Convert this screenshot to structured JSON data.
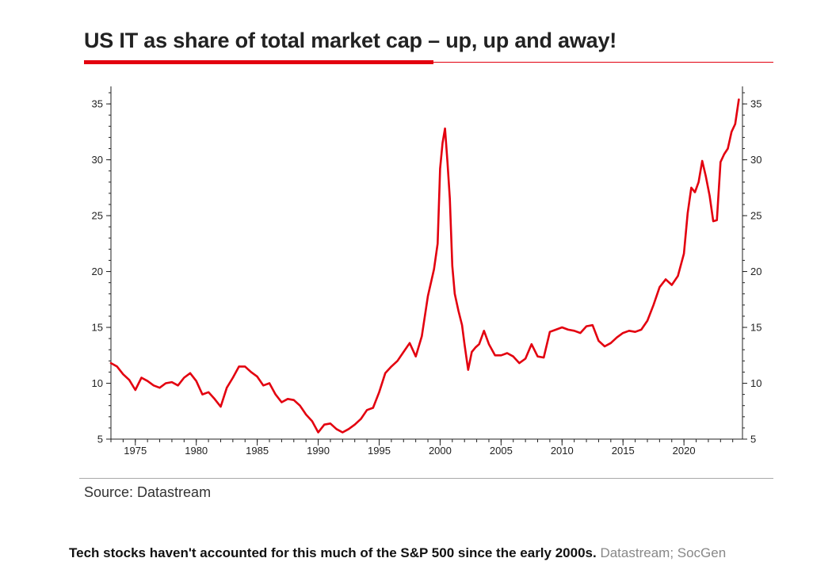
{
  "header": {
    "title": "US IT as share of total market cap – up, up and away!"
  },
  "source": {
    "text": "Source: Datastream"
  },
  "caption": {
    "text": "Tech stocks haven't accounted for this much of the S&P 500 since the early 2000s.",
    "credit": "Datastream; SocGen"
  },
  "colors": {
    "line": "#e3000f",
    "accent": "#e3000f",
    "rule": "#a9a9a9"
  },
  "chart_data": {
    "type": "line",
    "title": "US IT as share of total market cap – up, up and away!",
    "xlabel": "",
    "ylabel": "",
    "xlim": [
      1973.0,
      2024.8
    ],
    "ylim": [
      5,
      36
    ],
    "x_ticks": [
      1975,
      1980,
      1985,
      1990,
      1995,
      2000,
      2005,
      2010,
      2015,
      2020
    ],
    "y_ticks": [
      5,
      10,
      15,
      20,
      25,
      30,
      35
    ],
    "y_axis_sides": [
      "left",
      "right"
    ],
    "grid": false,
    "series": [
      {
        "name": "US IT share of total market cap (%)",
        "color": "#e3000f",
        "x": [
          1973.0,
          1973.5,
          1974.0,
          1974.5,
          1975.0,
          1975.5,
          1976.0,
          1976.5,
          1977.0,
          1977.5,
          1978.0,
          1978.5,
          1979.0,
          1979.5,
          1980.0,
          1980.5,
          1981.0,
          1981.5,
          1982.0,
          1982.5,
          1983.0,
          1983.5,
          1984.0,
          1984.5,
          1985.0,
          1985.5,
          1986.0,
          1986.5,
          1987.0,
          1987.5,
          1988.0,
          1988.5,
          1989.0,
          1989.5,
          1990.0,
          1990.5,
          1991.0,
          1991.5,
          1992.0,
          1992.5,
          1993.0,
          1993.5,
          1994.0,
          1994.5,
          1995.0,
          1995.5,
          1996.0,
          1996.5,
          1997.0,
          1997.5,
          1998.0,
          1998.5,
          1999.0,
          1999.5,
          1999.8,
          2000.0,
          2000.2,
          2000.4,
          2000.6,
          2000.8,
          2001.0,
          2001.2,
          2001.5,
          2001.8,
          2002.0,
          2002.3,
          2002.6,
          2002.9,
          2003.2,
          2003.6,
          2004.0,
          2004.5,
          2005.0,
          2005.5,
          2006.0,
          2006.5,
          2007.0,
          2007.5,
          2008.0,
          2008.5,
          2009.0,
          2009.5,
          2010.0,
          2010.5,
          2011.0,
          2011.5,
          2012.0,
          2012.5,
          2013.0,
          2013.5,
          2014.0,
          2014.5,
          2015.0,
          2015.5,
          2016.0,
          2016.5,
          2017.0,
          2017.5,
          2018.0,
          2018.5,
          2019.0,
          2019.5,
          2020.0,
          2020.3,
          2020.6,
          2020.9,
          2021.2,
          2021.5,
          2021.8,
          2022.1,
          2022.4,
          2022.7,
          2023.0,
          2023.3,
          2023.6,
          2023.9,
          2024.2,
          2024.5
        ],
        "values": [
          11.8,
          11.5,
          10.8,
          10.3,
          9.4,
          10.5,
          10.2,
          9.8,
          9.6,
          10.0,
          10.1,
          9.8,
          10.5,
          10.9,
          10.2,
          9.0,
          9.2,
          8.6,
          7.9,
          9.6,
          10.5,
          11.5,
          11.5,
          11.0,
          10.6,
          9.8,
          10.0,
          9.0,
          8.3,
          8.6,
          8.5,
          8.0,
          7.2,
          6.6,
          5.6,
          6.3,
          6.4,
          5.9,
          5.6,
          5.9,
          6.3,
          6.8,
          7.6,
          7.8,
          9.2,
          10.9,
          11.5,
          12.0,
          12.8,
          13.6,
          12.4,
          14.2,
          17.8,
          20.2,
          22.5,
          29.2,
          31.5,
          32.8,
          29.8,
          26.5,
          20.5,
          18.0,
          16.5,
          15.2,
          13.5,
          11.2,
          12.8,
          13.2,
          13.5,
          14.7,
          13.5,
          12.5,
          12.5,
          12.7,
          12.4,
          11.8,
          12.2,
          13.5,
          12.4,
          12.3,
          14.6,
          14.8,
          15.0,
          14.8,
          14.7,
          14.5,
          15.1,
          15.2,
          13.8,
          13.3,
          13.6,
          14.1,
          14.5,
          14.7,
          14.6,
          14.8,
          15.6,
          17.0,
          18.6,
          19.3,
          18.8,
          19.6,
          21.6,
          25.2,
          27.5,
          27.1,
          28.0,
          29.9,
          28.5,
          26.8,
          24.5,
          24.6,
          29.8,
          30.5,
          31.0,
          32.5,
          33.2,
          35.4
        ]
      }
    ]
  }
}
